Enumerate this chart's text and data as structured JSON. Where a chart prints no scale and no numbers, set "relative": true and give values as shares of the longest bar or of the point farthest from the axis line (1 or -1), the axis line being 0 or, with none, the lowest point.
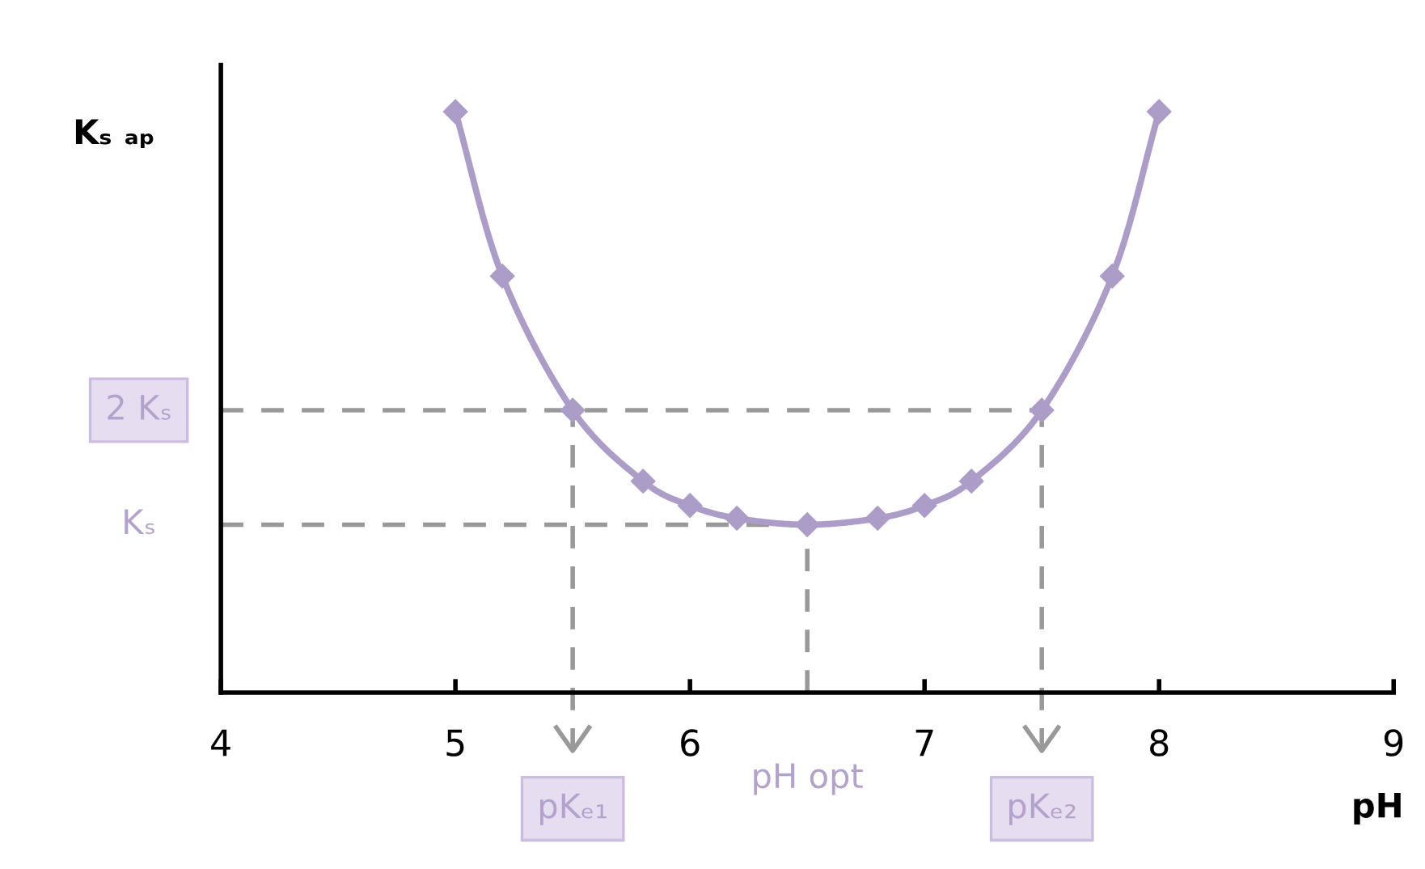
{
  "chart_data": {
    "type": "line",
    "relative": true,
    "xlabel": "pH",
    "ylabel": "Kₛ ₐₚ",
    "x": [
      5,
      5.2,
      5.5,
      5.8,
      6.0,
      6.2,
      6.5,
      6.8,
      7.0,
      7.2,
      7.5,
      7.8,
      8.0
    ],
    "series": [
      {
        "color": "#ab9cc8",
        "values": [
          1.0,
          0.717,
          0.486,
          0.364,
          0.322,
          0.3,
          0.289,
          0.3,
          0.322,
          0.364,
          0.486,
          0.717,
          1.0
        ]
      }
    ],
    "xlim": [
      4,
      9
    ],
    "xticks": [
      4,
      5,
      6,
      7,
      8,
      9
    ],
    "marker": "diamond",
    "line_style": "solid",
    "grid": false,
    "ref_lines": [
      {
        "axis": "y",
        "value": 0.486,
        "label": "2 Kₛ",
        "color": "#999999",
        "line_style": "dashed"
      },
      {
        "axis": "y",
        "value": 0.289,
        "label": "Kₛ",
        "color": "#999999",
        "line_style": "dashed"
      },
      {
        "axis": "x",
        "value": 5.5,
        "label": "pKₑ₁",
        "color": "#999999",
        "line_style": "dashed"
      },
      {
        "axis": "x",
        "value": 6.5,
        "label": "pH opt",
        "color": "#999999",
        "line_style": "dashed"
      },
      {
        "axis": "x",
        "value": 7.5,
        "label": "pKₑ₂",
        "color": "#999999",
        "line_style": "dashed"
      }
    ]
  }
}
